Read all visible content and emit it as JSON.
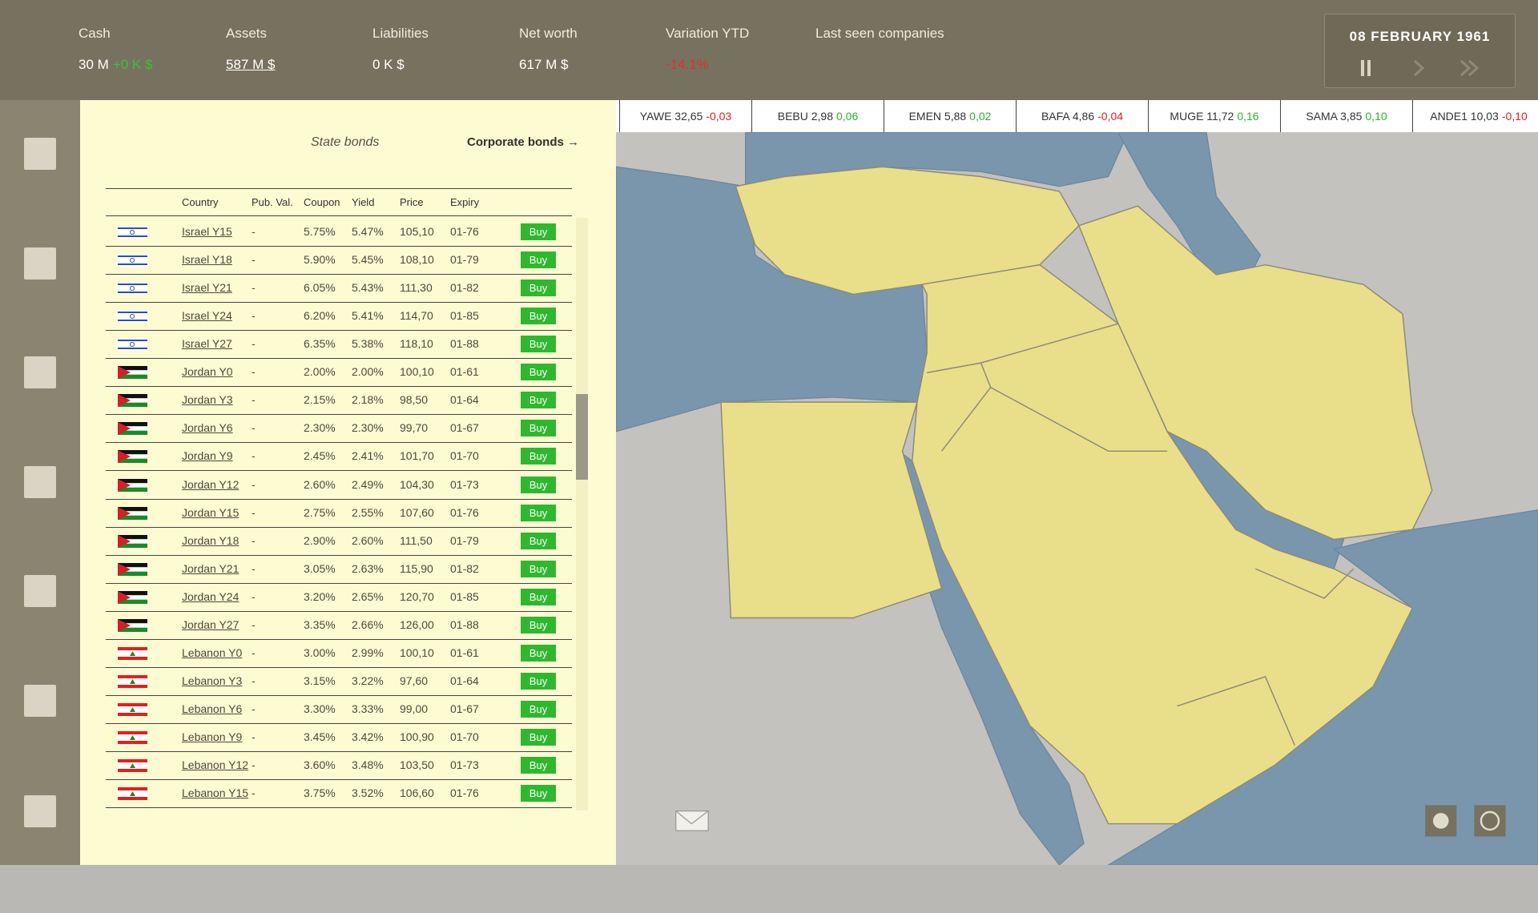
{
  "header": {
    "stats": [
      {
        "label": "Cash",
        "value": "30 M",
        "change": "+0 K $"
      },
      {
        "label": "Assets",
        "value": "587 M $"
      },
      {
        "label": "Liabilities",
        "value": "0 K $"
      },
      {
        "label": "Net worth",
        "value": "617 M $"
      },
      {
        "label": "Variation YTD",
        "value": "-14.1%"
      }
    ],
    "last_seen_label": "Last seen companies",
    "date": "08 FEBRUARY 1961"
  },
  "ticker": [
    {
      "symbol": "YAWE 32,65",
      "change": "-0,03"
    },
    {
      "symbol": "BEBU 2,98",
      "change": "0,06"
    },
    {
      "symbol": "EMEN 5,88",
      "change": "0,02"
    },
    {
      "symbol": "BAFA 4,86",
      "change": "-0,04"
    },
    {
      "symbol": "MUGE 11,72",
      "change": "0,16"
    },
    {
      "symbol": "SAMA 3,85",
      "change": "0,10"
    },
    {
      "symbol": "ANDE1 10,03",
      "change": "-0,10"
    }
  ],
  "tabs": {
    "state": "State bonds",
    "corporate": "Corporate bonds →"
  },
  "table": {
    "columns": [
      "Country",
      "Pub. Val.",
      "Coupon",
      "Yield",
      "Price",
      "Expiry"
    ],
    "action": "Buy",
    "rows": [
      [
        "Israel Y15",
        "-",
        "5.75%",
        "5.47%",
        "105,10",
        "01-76"
      ],
      [
        "Israel Y18",
        "-",
        "5.90%",
        "5.45%",
        "108,10",
        "01-79"
      ],
      [
        "Israel Y21",
        "-",
        "6.05%",
        "5.43%",
        "111,30",
        "01-82"
      ],
      [
        "Israel Y24",
        "-",
        "6.20%",
        "5.41%",
        "114,70",
        "01-85"
      ],
      [
        "Israel Y27",
        "-",
        "6.35%",
        "5.38%",
        "118,10",
        "01-88"
      ],
      [
        "Jordan Y0",
        "-",
        "2.00%",
        "2.00%",
        "100,10",
        "01-61"
      ],
      [
        "Jordan Y3",
        "-",
        "2.15%",
        "2.18%",
        "98,50",
        "01-64"
      ],
      [
        "Jordan Y6",
        "-",
        "2.30%",
        "2.30%",
        "99,70",
        "01-67"
      ],
      [
        "Jordan Y9",
        "-",
        "2.45%",
        "2.41%",
        "101,70",
        "01-70"
      ],
      [
        "Jordan Y12",
        "-",
        "2.60%",
        "2.49%",
        "104,30",
        "01-73"
      ],
      [
        "Jordan Y15",
        "-",
        "2.75%",
        "2.55%",
        "107,60",
        "01-76"
      ],
      [
        "Jordan Y18",
        "-",
        "2.90%",
        "2.60%",
        "111,50",
        "01-79"
      ],
      [
        "Jordan Y21",
        "-",
        "3.05%",
        "2.63%",
        "115,90",
        "01-82"
      ],
      [
        "Jordan Y24",
        "-",
        "3.20%",
        "2.65%",
        "120,70",
        "01-85"
      ],
      [
        "Jordan Y27",
        "-",
        "3.35%",
        "2.66%",
        "126,00",
        "01-88"
      ],
      [
        "Lebanon Y0",
        "-",
        "3.00%",
        "2.99%",
        "100,10",
        "01-61"
      ],
      [
        "Lebanon Y3",
        "-",
        "3.15%",
        "3.22%",
        "97,60",
        "01-64"
      ],
      [
        "Lebanon Y6",
        "-",
        "3.30%",
        "3.33%",
        "99,00",
        "01-67"
      ],
      [
        "Lebanon Y9",
        "-",
        "3.45%",
        "3.42%",
        "100,90",
        "01-70"
      ],
      [
        "Lebanon Y12",
        "-",
        "3.60%",
        "3.48%",
        "103,50",
        "01-73"
      ],
      [
        "Lebanon Y15",
        "-",
        "3.75%",
        "3.52%",
        "106,60",
        "01-76"
      ]
    ]
  }
}
